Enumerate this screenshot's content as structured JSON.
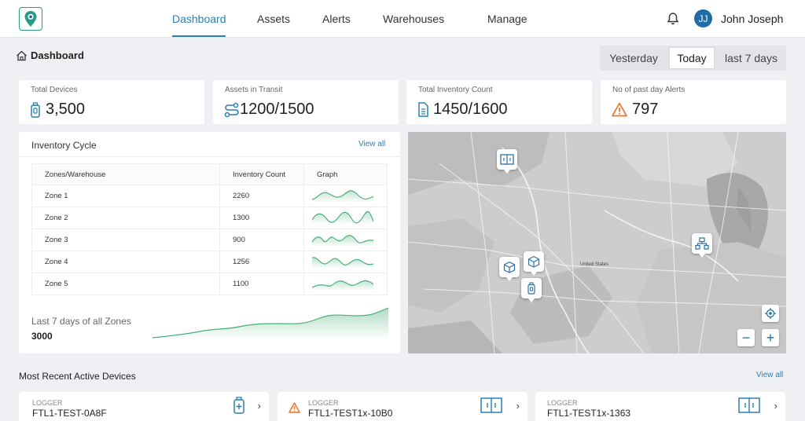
{
  "nav": {
    "items": [
      "Dashboard",
      "Assets",
      "Alerts",
      "Warehouses",
      "Manage"
    ],
    "active": "Dashboard"
  },
  "user": {
    "initials": "JJ",
    "name": "John Joseph"
  },
  "page": {
    "title": "Dashboard"
  },
  "range": {
    "options": [
      "Yesterday",
      "Today",
      "last 7 days"
    ],
    "selected": "Today"
  },
  "kpis": [
    {
      "label": "Total Devices",
      "value": "3,500",
      "icon": "logger-icon"
    },
    {
      "label": "Assets in Transit",
      "value": "1200/1500",
      "icon": "route-icon"
    },
    {
      "label": "Total Inventory Count",
      "value": "1450/1600",
      "icon": "document-icon"
    },
    {
      "label": "No of past day Alerts",
      "value": "797",
      "icon": "warning-icon"
    }
  ],
  "inventory": {
    "title": "Inventory Cycle",
    "view_all": "View all",
    "columns": [
      "Zones/Warehouse",
      "Inventory Count",
      "Graph"
    ],
    "rows": [
      {
        "zone": "Zone 1",
        "count": "2260"
      },
      {
        "zone": "Zone 2",
        "count": "1300"
      },
      {
        "zone": "Zone 3",
        "count": "900"
      },
      {
        "zone": "Zone 4",
        "count": "1256"
      },
      {
        "zone": "Zone 5",
        "count": "1100"
      }
    ],
    "summary_label": "Last 7 days of all Zones",
    "summary_value": "3000"
  },
  "map": {
    "label": "United States",
    "pins": [
      "warehouse-icon",
      "package-icon",
      "package-icon",
      "logger-icon",
      "network-icon"
    ],
    "controls": {
      "locate": "locate-icon",
      "zoom_out": "−",
      "zoom_in": "+"
    }
  },
  "recent": {
    "title": "Most Recent Active Devices",
    "view_all": "View all",
    "devices": [
      {
        "type": "LOGGER",
        "id": "FTL1-TEST-0A8F",
        "icon": "logger-add-icon",
        "alert": false
      },
      {
        "type": "LOGGER",
        "id": "FTL1-TEST1x-10B0",
        "icon": "door-sensor-icon",
        "alert": true
      },
      {
        "type": "LOGGER",
        "id": "FTL1-TEST1x-1363",
        "icon": "door-sensor-icon",
        "alert": false
      }
    ]
  },
  "colors": {
    "accent": "#2b7fb3",
    "green": "#4caf7a",
    "warning": "#e8742a",
    "pin_icon": "#2b6ea8"
  }
}
